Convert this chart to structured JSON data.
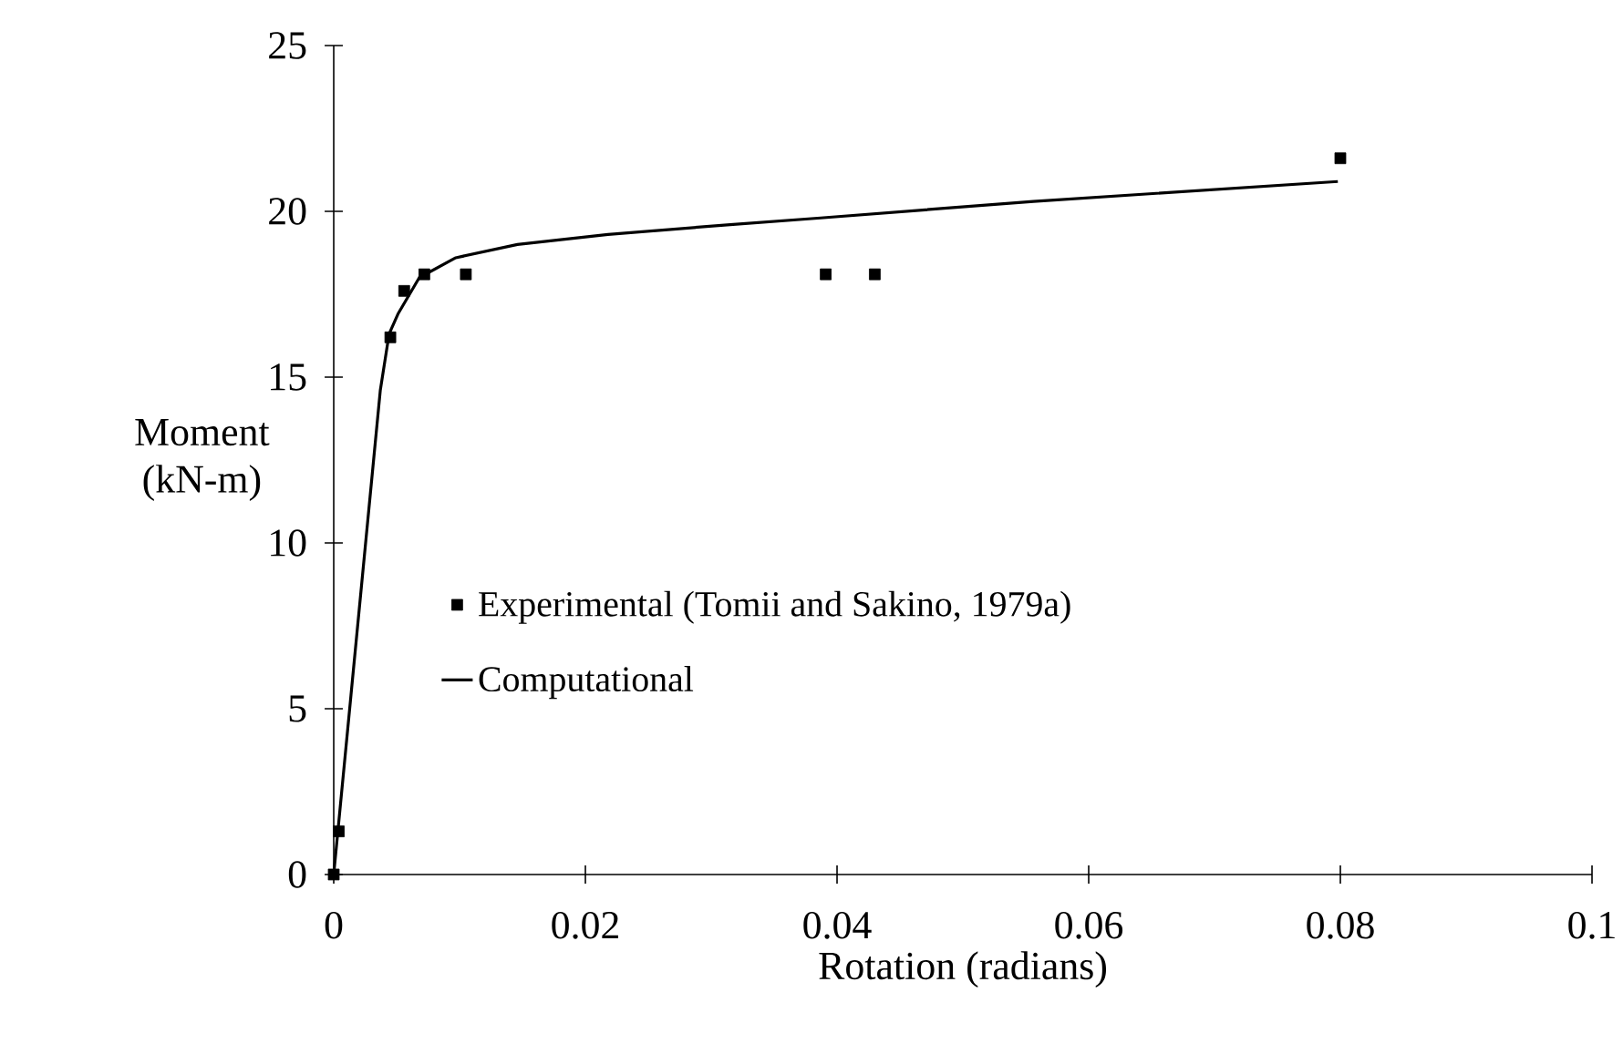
{
  "chart_data": {
    "type": "scatter",
    "xlabel": "Rotation (radians)",
    "ylabel": "Moment (kN-m)",
    "xlim": [
      0,
      0.1
    ],
    "ylim": [
      0,
      25
    ],
    "xticks": [
      0,
      0.02,
      0.04,
      0.06,
      0.08,
      0.1
    ],
    "yticks": [
      0,
      5,
      10,
      15,
      20,
      25
    ],
    "grid": false,
    "legend": "left",
    "series": [
      {
        "name": "Experimental (Tomii and Sakino, 1979a)",
        "color": "#000000",
        "marker": "square",
        "x": [
          0,
          0.0004,
          0.0045,
          0.0056,
          0.0072,
          0.0105,
          0.0391,
          0.043,
          0.08
        ],
        "values": [
          0,
          1.3,
          16.2,
          17.6,
          18.1,
          18.1,
          18.1,
          18.1,
          21.6
        ]
      },
      {
        "name": "Computational",
        "type": "line",
        "color": "#000000",
        "marker": "none",
        "line_style": "solid",
        "x": [
          0,
          0.0037,
          0.0044,
          0.0051,
          0.0068,
          0.0097,
          0.0146,
          0.0218,
          0.0315,
          0.0387,
          0.0556,
          0.0798
        ],
        "values": [
          0,
          14.6,
          16.3,
          16.9,
          18.0,
          18.6,
          19.0,
          19.3,
          19.6,
          19.8,
          20.3,
          20.9
        ]
      }
    ]
  }
}
